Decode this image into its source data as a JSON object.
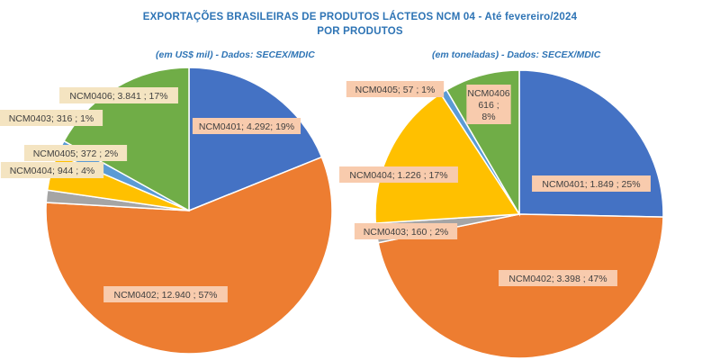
{
  "header": {
    "title_line1": "EXPORTAÇÕES  BRASILEIRAS  DE PRODUTOS  LÁCTEOS NCM 04 - Até fevereiro/2024",
    "title_line2": "POR PRODUTOS"
  },
  "chart_data": [
    {
      "type": "pie",
      "subtitle": "(em US$ mil) - Dados: SECEX/MDIC",
      "slices": [
        {
          "category": "NCM0401",
          "value": 4292,
          "label": "NCM0401; 4.292; 19%",
          "color": "#4472c4"
        },
        {
          "category": "NCM0402",
          "value": 12940,
          "label": "NCM0402;  12.940 ; 57%",
          "color": "#ed7d31"
        },
        {
          "category": "NCM0403",
          "value": 316,
          "label": "NCM0403;  316 ; 1%",
          "color": "#a5a5a5"
        },
        {
          "category": "NCM0404",
          "value": 944,
          "label": "NCM0404;  944 ; 4%",
          "color": "#ffc000"
        },
        {
          "category": "NCM0405",
          "value": 372,
          "label": "NCM0405;  372 ; 2%",
          "color": "#5b9bd5"
        },
        {
          "category": "NCM0406",
          "value": 3841,
          "label": "NCM0406;  3.841 ; 17%",
          "color": "#70ad47"
        }
      ],
      "label_style": {
        "fill": "#f8cbad",
        "alt_fill": "#f4e4c1",
        "text_color": "#404040"
      }
    },
    {
      "type": "pie",
      "subtitle": "(em toneladas) - Dados: SECEX/MDIC",
      "slices": [
        {
          "category": "NCM0401",
          "value": 1849,
          "label": "NCM0401;  1.849 ; 25%",
          "color": "#4472c4"
        },
        {
          "category": "NCM0402",
          "value": 3398,
          "label": "NCM0402;  3.398 ; 47%",
          "color": "#ed7d31"
        },
        {
          "category": "NCM0403",
          "value": 160,
          "label": "NCM0403;  160 ; 2%",
          "color": "#a5a5a5"
        },
        {
          "category": "NCM0404",
          "value": 1226,
          "label": "NCM0404;  1.226 ; 17%",
          "color": "#ffc000"
        },
        {
          "category": "NCM0405",
          "value": 57,
          "label": "NCM0405;  57 ; 1%",
          "color": "#5b9bd5"
        },
        {
          "category": "NCM0406",
          "value": 616,
          "label": "NCM0406;  616 ;  8%",
          "color": "#70ad47"
        }
      ],
      "label_style": {
        "fill": "#f8cbad",
        "alt_fill": "#f4e4c1",
        "text_color": "#404040"
      }
    }
  ]
}
